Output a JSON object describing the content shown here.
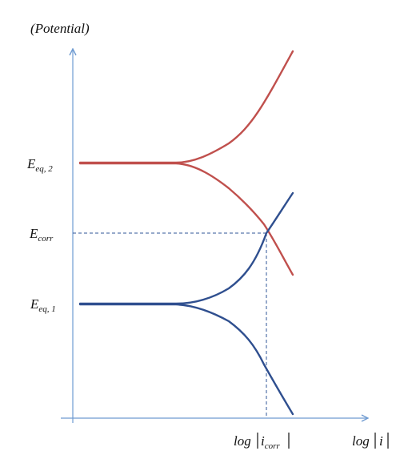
{
  "labels": {
    "y_axis": "(Potential)",
    "x_axis": "log",
    "x_axis_var": "i",
    "eq2_main": "E",
    "eq2_sub": "eq, 2",
    "corr_main": "E",
    "corr_sub": "corr",
    "eq1_main": "E",
    "eq1_sub": "eq, 1",
    "icorr_log": "log",
    "icorr_main": "i",
    "icorr_sub": "corr"
  },
  "colors": {
    "axis": "#6f9bd1",
    "red_curves": "#c0504d",
    "blue_curves": "#2f4f8f",
    "guide": "#2f5597"
  }
}
